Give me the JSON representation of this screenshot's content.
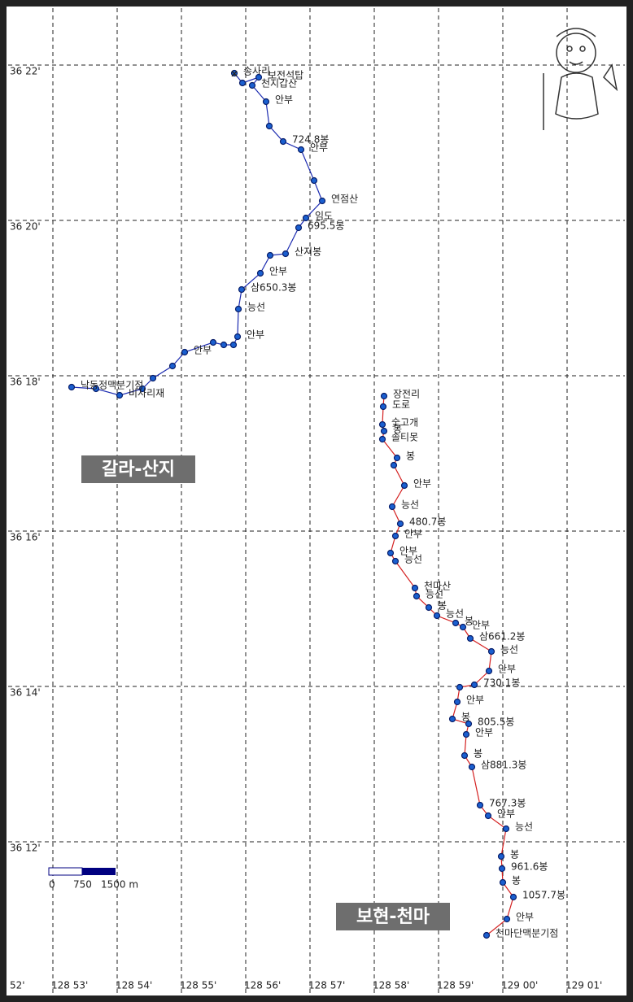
{
  "grid": {
    "lat_labels": [
      "36 22'",
      "36 20'",
      "36 18'",
      "36 16'",
      "36 14'",
      "36 12'"
    ],
    "lon_labels": [
      "52'",
      "128 53'",
      "128 54'",
      "128 55'",
      "128 56'",
      "128 57'",
      "128 58'",
      "128 59'",
      "129 00'",
      "129 01'"
    ]
  },
  "tracks": [
    {
      "name": "갈라-산지",
      "color": "#1c2bb0",
      "waypoints": [
        "송사리",
        "보전석탑",
        "천지갑산",
        "안부",
        "724.8봉",
        "안부",
        "연점산",
        "임도",
        "695.5봉",
        "산지봉",
        "안부",
        "삼650.3봉",
        "능선",
        "안부",
        "안부",
        "비사리재",
        "낙동정맥분기점"
      ]
    },
    {
      "name": "보현-천마",
      "color": "#d42020",
      "waypoints": [
        "장전리",
        "도로",
        "숯고개",
        "봉",
        "솔티못",
        "봉",
        "안부",
        "능선",
        "480.7봉",
        "안부",
        "안부",
        "능선",
        "천마산",
        "능선",
        "봉",
        "능선",
        "봉",
        "안부",
        "삼661.2봉",
        "능선",
        "안부",
        "730.1봉",
        "안부",
        "봉",
        "805.5봉",
        "안부",
        "봉",
        "삼881.3봉",
        "767.3봉",
        "안부",
        "능선",
        "봉",
        "961.6봉",
        "봉",
        "1057.7봉",
        "안부",
        "천마단맥분기점"
      ]
    }
  ],
  "scale": {
    "labels": [
      "0",
      "750",
      "1500 m"
    ]
  }
}
